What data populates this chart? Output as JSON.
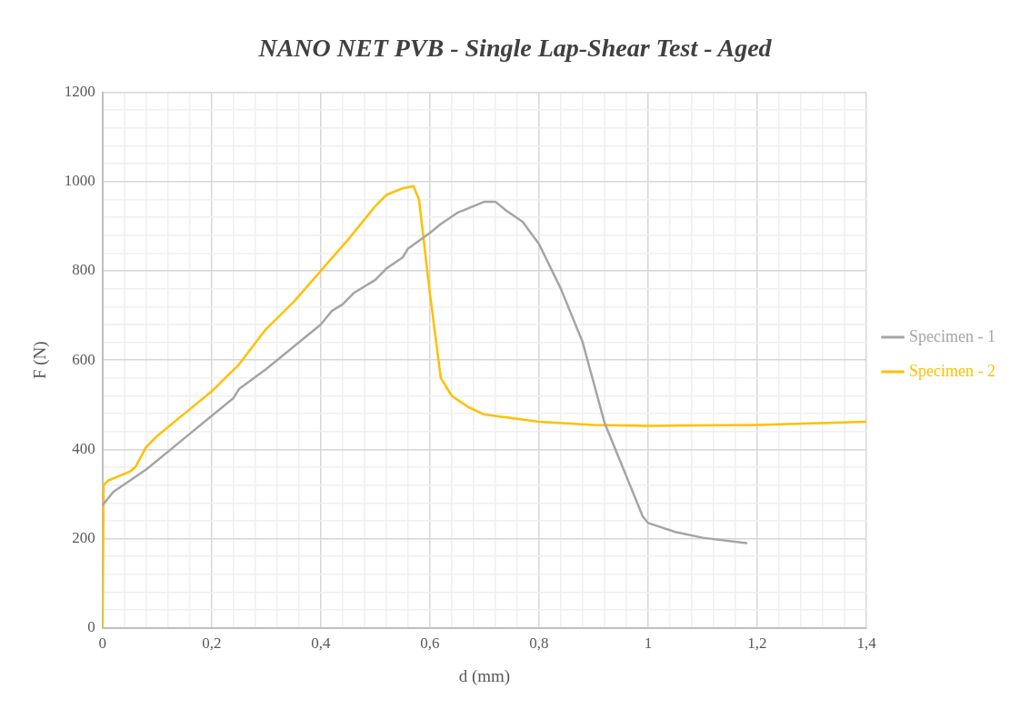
{
  "chart_data": {
    "type": "line",
    "title": "NANO NET PVB - Single Lap-Shear Test - Aged",
    "xlabel": "d (mm)",
    "ylabel": "F (N)",
    "xlim": [
      0,
      1.4
    ],
    "ylim": [
      0,
      1200
    ],
    "xticks": [
      {
        "value": 0,
        "label": "0"
      },
      {
        "value": 0.04,
        "label": null
      },
      {
        "value": 0.08,
        "label": null
      },
      {
        "value": 0.12,
        "label": null
      },
      {
        "value": 0.16,
        "label": null
      },
      {
        "value": 0.2,
        "label": "0,2"
      },
      {
        "value": 0.24,
        "label": null
      },
      {
        "value": 0.28,
        "label": null
      },
      {
        "value": 0.32,
        "label": null
      },
      {
        "value": 0.36,
        "label": null
      },
      {
        "value": 0.4,
        "label": "0,4"
      },
      {
        "value": 0.44,
        "label": null
      },
      {
        "value": 0.48,
        "label": null
      },
      {
        "value": 0.52,
        "label": null
      },
      {
        "value": 0.56,
        "label": null
      },
      {
        "value": 0.6,
        "label": "0,6"
      },
      {
        "value": 0.64,
        "label": null
      },
      {
        "value": 0.68,
        "label": null
      },
      {
        "value": 0.72,
        "label": null
      },
      {
        "value": 0.76,
        "label": null
      },
      {
        "value": 0.8,
        "label": "0,8"
      },
      {
        "value": 0.84,
        "label": null
      },
      {
        "value": 0.88,
        "label": null
      },
      {
        "value": 0.92,
        "label": null
      },
      {
        "value": 0.96,
        "label": null
      },
      {
        "value": 1,
        "label": "1"
      },
      {
        "value": 1.04,
        "label": null
      },
      {
        "value": 1.08,
        "label": null
      },
      {
        "value": 1.12,
        "label": null
      },
      {
        "value": 1.16,
        "label": null
      },
      {
        "value": 1.2,
        "label": "1,2"
      },
      {
        "value": 1.24,
        "label": null
      },
      {
        "value": 1.28,
        "label": null
      },
      {
        "value": 1.32,
        "label": null
      },
      {
        "value": 1.36,
        "label": null
      },
      {
        "value": 1.4,
        "label": "1,4"
      }
    ],
    "yticks": [
      0,
      {
        "value": 40,
        "label": null
      },
      {
        "value": 80,
        "label": null
      },
      {
        "value": 120,
        "label": null
      },
      {
        "value": 160,
        "label": null
      },
      200,
      {
        "value": 240,
        "label": null
      },
      {
        "value": 280,
        "label": null
      },
      {
        "value": 320,
        "label": null
      },
      {
        "value": 360,
        "label": null
      },
      400,
      {
        "value": 440,
        "label": null
      },
      {
        "value": 480,
        "label": null
      },
      {
        "value": 520,
        "label": null
      },
      {
        "value": 560,
        "label": null
      },
      600,
      {
        "value": 640,
        "label": null
      },
      {
        "value": 680,
        "label": null
      },
      {
        "value": 720,
        "label": null
      },
      {
        "value": 760,
        "label": null
      },
      800,
      {
        "value": 840,
        "label": null
      },
      {
        "value": 880,
        "label": null
      },
      {
        "value": 920,
        "label": null
      },
      {
        "value": 960,
        "label": null
      },
      1000,
      {
        "value": 1040,
        "label": null
      },
      {
        "value": 1080,
        "label": null
      },
      {
        "value": 1120,
        "label": null
      },
      {
        "value": 1160,
        "label": null
      },
      1200
    ],
    "grid": true,
    "legend": "right",
    "marker": "none",
    "line_style": "solid",
    "series": [
      {
        "name": "Specimen - 1",
        "color": "#a5a5a5",
        "x": [
          0,
          0.02,
          0.05,
          0.08,
          0.1,
          0.15,
          0.2,
          0.24,
          0.25,
          0.3,
          0.35,
          0.4,
          0.42,
          0.44,
          0.46,
          0.5,
          0.52,
          0.55,
          0.56,
          0.6,
          0.62,
          0.65,
          0.7,
          0.72,
          0.74,
          0.77,
          0.8,
          0.84,
          0.88,
          0.9,
          0.92,
          0.96,
          0.99,
          1,
          1.05,
          1.1,
          1.18
        ],
        "values": [
          275,
          305,
          330,
          355,
          375,
          425,
          475,
          515,
          535,
          580,
          630,
          680,
          710,
          725,
          750,
          780,
          805,
          830,
          850,
          885,
          905,
          930,
          955,
          955,
          935,
          910,
          860,
          760,
          640,
          550,
          460,
          340,
          250,
          235,
          215,
          202,
          190
        ]
      },
      {
        "name": "Specimen - 2",
        "color": "#ffc000",
        "x": [
          0,
          0.002,
          0.01,
          0.05,
          0.06,
          0.08,
          0.1,
          0.15,
          0.2,
          0.25,
          0.3,
          0.35,
          0.4,
          0.45,
          0.5,
          0.52,
          0.55,
          0.57,
          0.58,
          0.6,
          0.62,
          0.64,
          0.67,
          0.7,
          0.8,
          0.9,
          1,
          1.2,
          1.4
        ],
        "values": [
          0,
          320,
          330,
          350,
          360,
          405,
          430,
          480,
          530,
          590,
          670,
          730,
          800,
          870,
          945,
          970,
          985,
          990,
          960,
          750,
          560,
          520,
          495,
          478,
          462,
          455,
          453,
          455,
          462
        ]
      }
    ]
  }
}
